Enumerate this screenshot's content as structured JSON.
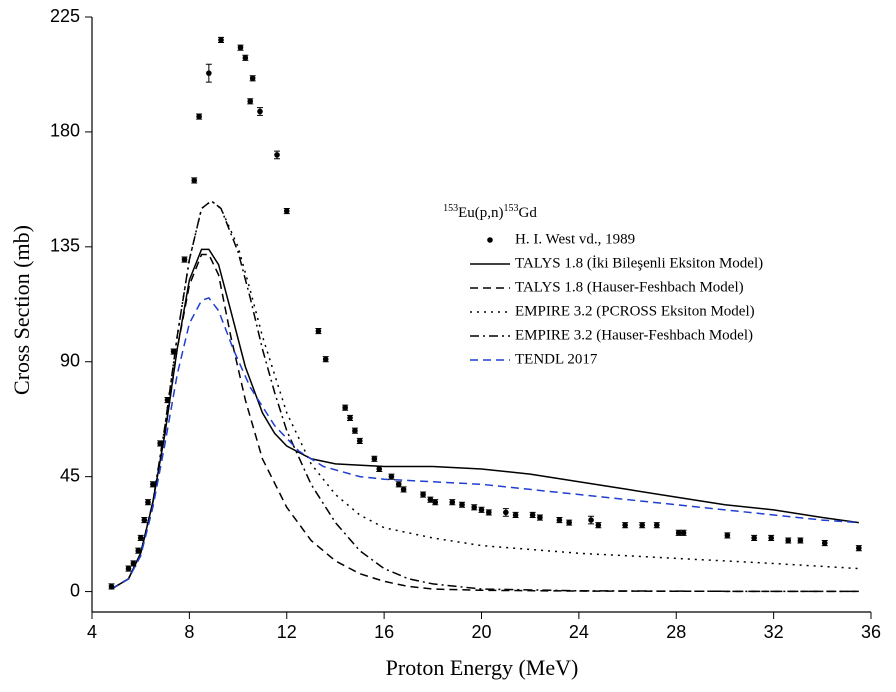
{
  "chart_data": {
    "type": "scatter_line",
    "x_label": "Proton Energy (MeV)",
    "y_label": "Cross Section (mb)",
    "legend_title": [
      "153",
      "Eu(p,n)",
      "153",
      "Gd"
    ],
    "xlim": [
      4,
      36
    ],
    "ylim": [
      -8,
      225
    ],
    "xticks": [
      4,
      8,
      12,
      16,
      20,
      24,
      28,
      32,
      36
    ],
    "yticks": [
      0,
      45,
      90,
      135,
      180,
      225
    ],
    "points": {
      "name": "H. I. West vd., 1989",
      "color": "#000000",
      "x": [
        4.8,
        5.5,
        5.7,
        5.9,
        6.0,
        6.15,
        6.3,
        6.5,
        6.8,
        7.1,
        7.35,
        7.8,
        8.2,
        8.4,
        8.8,
        9.3,
        10.1,
        10.3,
        10.6,
        10.5,
        10.9,
        11.6,
        12.0,
        13.3,
        13.6,
        14.4,
        14.6,
        14.8,
        15.0,
        15.6,
        15.8,
        16.3,
        16.6,
        16.8,
        17.6,
        17.9,
        18.1,
        18.8,
        19.2,
        19.7,
        20.0,
        20.3,
        21.0,
        21.4,
        22.1,
        22.4,
        23.2,
        23.6,
        24.5,
        24.8,
        25.9,
        26.6,
        27.2,
        28.1,
        28.3,
        30.1,
        31.2,
        31.9,
        32.6,
        33.1,
        34.1,
        35.5
      ],
      "values": [
        2,
        9,
        11,
        16,
        21,
        28,
        35,
        42,
        58,
        75,
        94,
        130,
        161,
        186,
        203,
        216,
        213,
        209,
        201,
        192,
        188,
        171,
        149,
        102,
        91,
        72,
        68,
        63,
        59,
        52,
        48,
        45,
        42,
        40,
        38,
        36,
        35,
        35,
        34,
        33,
        32,
        31,
        31,
        30,
        30,
        29,
        28,
        27,
        28,
        26,
        26,
        26,
        26,
        23,
        23,
        22,
        21,
        21,
        20,
        20,
        19,
        17
      ],
      "errors": [
        1,
        1,
        1,
        1,
        1,
        1,
        1,
        1,
        1,
        1,
        1,
        1,
        1,
        1,
        3.5,
        1,
        1,
        1,
        1,
        1,
        1.5,
        1.5,
        1,
        1,
        1,
        1,
        1,
        1,
        1,
        1,
        1,
        1,
        1,
        1,
        1,
        1,
        1,
        1,
        1,
        1,
        1,
        1,
        1.5,
        1,
        1,
        1,
        1,
        1,
        1.5,
        1,
        1,
        1,
        1,
        1,
        1,
        1,
        1,
        1,
        1,
        1,
        1,
        1
      ]
    },
    "series": [
      {
        "name": "TALYS 1.8 (İki Bileşenli Eksiton Model)",
        "color": "#000000",
        "dash": "solid",
        "x": [
          4.8,
          5.5,
          6,
          6.5,
          7,
          7.5,
          8,
          8.5,
          8.8,
          9.2,
          9.7,
          10.3,
          11,
          11.5,
          12,
          13,
          14,
          16,
          18,
          20,
          22,
          24,
          26,
          28,
          30,
          32,
          34,
          35.5
        ],
        "values": [
          1,
          5,
          15,
          35,
          62,
          95,
          122,
          134,
          134,
          128,
          110,
          88,
          70,
          62,
          57,
          52,
          50,
          49,
          49,
          48,
          46,
          43,
          40,
          37,
          34,
          32,
          29,
          27
        ]
      },
      {
        "name": "TALYS 1.8 (Hauser-Feshbach Model)",
        "color": "#000000",
        "dash": "dash",
        "x": [
          4.8,
          5.5,
          6,
          6.5,
          7,
          7.5,
          8,
          8.5,
          8.8,
          9.2,
          9.7,
          10.3,
          11,
          12,
          13,
          14,
          15,
          16,
          17,
          18,
          20,
          24,
          30,
          35.5
        ],
        "values": [
          1,
          5,
          15,
          35,
          62,
          95,
          120,
          132,
          132,
          124,
          100,
          75,
          52,
          33,
          20,
          12,
          7,
          4,
          2,
          1,
          0.5,
          0.2,
          0.1,
          0.1
        ]
      },
      {
        "name": "EMPIRE 3.2 (PCROSS Eksiton Model)",
        "color": "#000000",
        "dash": "dot",
        "x": [
          4.8,
          5.5,
          6,
          6.5,
          7,
          7.5,
          8,
          8.5,
          8.9,
          9.3,
          10,
          10.5,
          11,
          11.5,
          12,
          13,
          14,
          15,
          16,
          18,
          20,
          24,
          28,
          32,
          35.5
        ],
        "values": [
          1,
          5,
          15,
          35,
          65,
          100,
          130,
          150,
          153,
          150,
          135,
          118,
          100,
          85,
          70,
          50,
          38,
          30,
          25,
          21,
          18,
          15,
          13,
          11,
          9
        ]
      },
      {
        "name": "EMPIRE 3.2 (Hauser-Feshbach Model)",
        "color": "#000000",
        "dash": "dashdot",
        "x": [
          4.8,
          5.5,
          6,
          6.5,
          7,
          7.5,
          8,
          8.5,
          8.9,
          9.3,
          10,
          10.5,
          11,
          11.5,
          12,
          13,
          14,
          15,
          16,
          17,
          18,
          20,
          24,
          30,
          35.5
        ],
        "values": [
          1,
          5,
          15,
          35,
          65,
          100,
          130,
          150,
          153,
          150,
          133,
          115,
          95,
          78,
          63,
          42,
          27,
          16,
          9,
          5,
          3,
          1,
          0.3,
          0.1,
          0.1
        ]
      },
      {
        "name": "TENDL 2017",
        "color": "#1f3fd0",
        "dash": "dash",
        "x": [
          4.8,
          5.5,
          6,
          6.5,
          7,
          7.5,
          8,
          8.5,
          8.8,
          9.2,
          9.8,
          10.5,
          11.5,
          12.5,
          13.5,
          15,
          16,
          18,
          20,
          22,
          24,
          26,
          28,
          30,
          32,
          34,
          35.5
        ],
        "values": [
          1,
          5,
          14,
          33,
          58,
          85,
          105,
          114,
          115,
          110,
          95,
          80,
          65,
          55,
          49,
          45,
          44,
          43,
          42,
          40,
          38,
          36,
          34,
          32,
          30,
          28,
          27
        ]
      }
    ]
  }
}
